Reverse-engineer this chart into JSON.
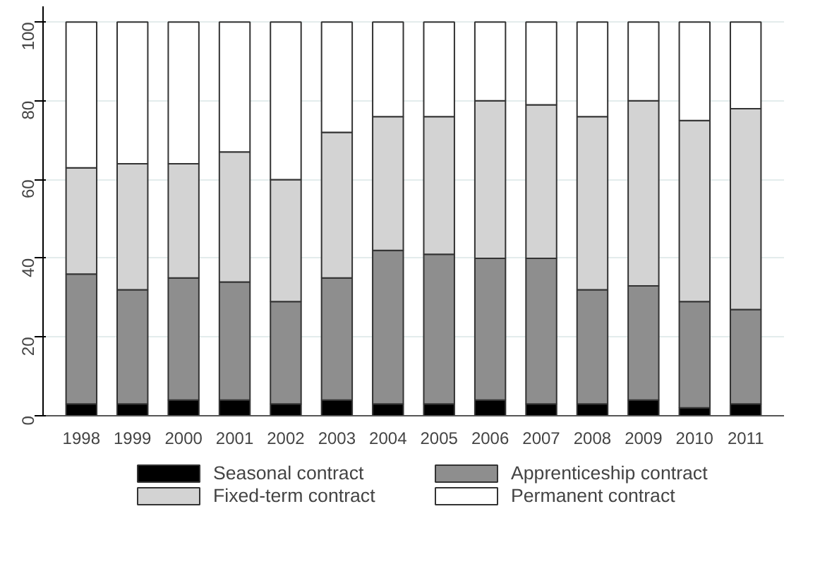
{
  "chart_data": {
    "type": "bar",
    "stacked": true,
    "categories": [
      "1998",
      "1999",
      "2000",
      "2001",
      "2002",
      "2003",
      "2004",
      "2005",
      "2006",
      "2007",
      "2008",
      "2009",
      "2010",
      "2011"
    ],
    "series": [
      {
        "name": "Seasonal contract",
        "color": "#000000",
        "values": [
          3,
          3,
          4,
          4,
          3,
          4,
          3,
          3,
          4,
          3,
          3,
          4,
          2,
          3
        ]
      },
      {
        "name": "Apprenticeship contract",
        "color": "#8e8e8e",
        "values": [
          33,
          29,
          31,
          30,
          26,
          31,
          39,
          38,
          36,
          37,
          29,
          29,
          27,
          24
        ]
      },
      {
        "name": "Fixed-term contract",
        "color": "#d3d3d3",
        "values": [
          27,
          32,
          29,
          33,
          31,
          37,
          34,
          35,
          40,
          39,
          44,
          47,
          46,
          51
        ]
      },
      {
        "name": "Permanent contract",
        "color": "#ffffff",
        "values": [
          37,
          36,
          36,
          33,
          40,
          28,
          24,
          24,
          20,
          21,
          24,
          20,
          25,
          22
        ]
      }
    ],
    "ylim": [
      0,
      104
    ],
    "yticks": [
      0,
      20,
      40,
      60,
      80,
      100
    ],
    "grid": "y",
    "legend": "bottom"
  }
}
